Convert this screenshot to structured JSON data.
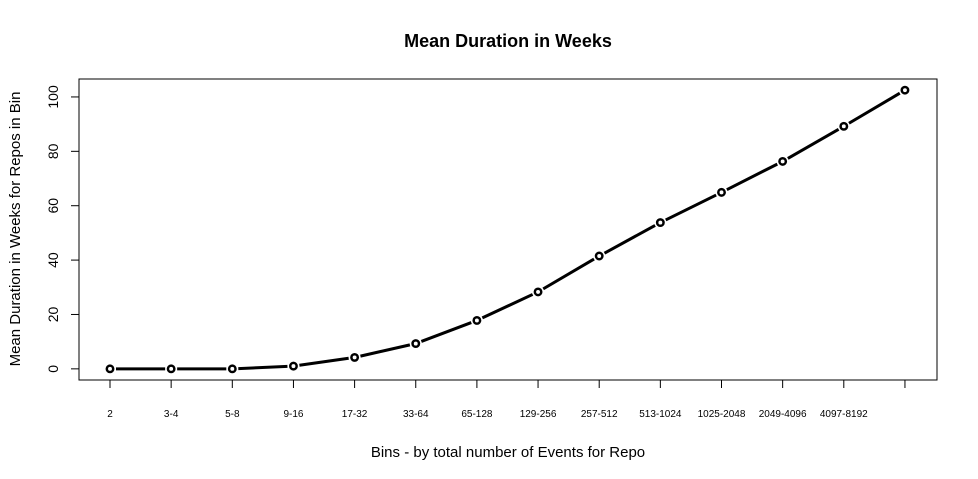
{
  "chart_data": {
    "type": "line",
    "title": "Mean Duration in Weeks",
    "xlabel": "Bins - by total number of Events for Repo",
    "ylabel": "Mean Duration in Weeks for Repos in Bin",
    "categories": [
      "2",
      "3-4",
      "5-8",
      "9-16",
      "17-32",
      "33-64",
      "65-128",
      "129-256",
      "257-512",
      "513-1024",
      "1025-2048",
      "2049-4096",
      "4097-8192",
      ""
    ],
    "series": [
      {
        "values": [
          0,
          0,
          0,
          1,
          4.2,
          9.3,
          17.8,
          28.3,
          41.5,
          53.8,
          64.9,
          76.3,
          89.2,
          102.5
        ]
      }
    ],
    "yticks": [
      0,
      20,
      40,
      60,
      80,
      100
    ],
    "ylim": [
      -4.1,
      106.6
    ],
    "grid": false,
    "marker": "open-circle",
    "line_color": "#000000"
  }
}
